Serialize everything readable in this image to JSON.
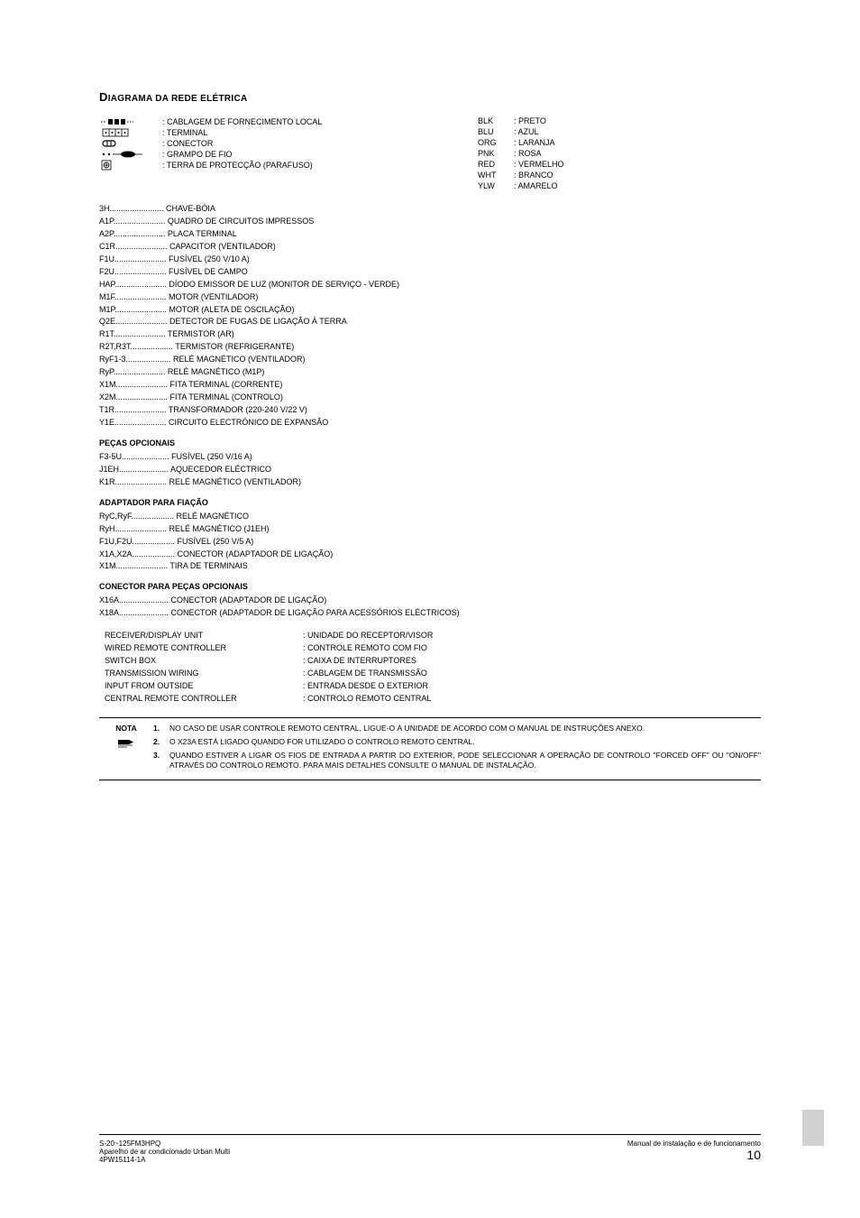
{
  "title_main": "D",
  "title_rest": "IAGRAMA DA REDE ELÉTRICA",
  "symbols": [
    {
      "label": ": CABLAGEM DE FORNECIMENTO LOCAL"
    },
    {
      "label": ": TERMINAL"
    },
    {
      "label": ": CONECTOR"
    },
    {
      "label": ": GRAMPO DE FIO"
    },
    {
      "label": ": TERRA DE PROTECÇÃO (PARAFUSO)"
    }
  ],
  "colors": [
    {
      "code": "BLK",
      "name": ": PRETO"
    },
    {
      "code": "BLU",
      "name": ": AZUL"
    },
    {
      "code": "ORG",
      "name": ": LARANJA"
    },
    {
      "code": "PNK",
      "name": ": ROSA"
    },
    {
      "code": "RED",
      "name": ": VERMELHO"
    },
    {
      "code": "WHT",
      "name": ": BRANCO"
    },
    {
      "code": "YLW",
      "name": ": AMARELO"
    }
  ],
  "main_defs": [
    {
      "code": "3H",
      "desc": "CHAVE-BÓIA"
    },
    {
      "code": "A1P",
      "desc": "QUADRO DE CIRCUITOS IMPRESSOS"
    },
    {
      "code": "A2P",
      "desc": "PLACA TERMINAL"
    },
    {
      "code": "C1R",
      "desc": "CAPACITOR (VENTILADOR)"
    },
    {
      "code": "F1U",
      "desc": "FUSÍVEL (250 V/10 A)"
    },
    {
      "code": "F2U",
      "desc": "FUSÍVEL DE CAMPO"
    },
    {
      "code": "HAP",
      "desc": "DÍODO EMISSOR DE LUZ (MONITOR DE SERVIÇO - VERDE)"
    },
    {
      "code": "M1F",
      "desc": "MOTOR (VENTILADOR)"
    },
    {
      "code": "M1P",
      "desc": "MOTOR (ALETA DE OSCILAÇÃO)"
    },
    {
      "code": "Q2E",
      "desc": "DETECTOR DE FUGAS DE LIGAÇÃO À TERRA"
    },
    {
      "code": "R1T",
      "desc": "TERMISTOR (AR)"
    },
    {
      "code": "R2T,R3T",
      "desc": "TERMISTOR (REFRIGERANTE)"
    },
    {
      "code": "RyF1-3",
      "desc": "RELÉ MAGNÉTICO (VENTILADOR)"
    },
    {
      "code": "RyP",
      "desc": "RELÉ MAGNÉTICO (M1P)"
    },
    {
      "code": "X1M",
      "desc": "FITA TERMINAL (CORRENTE)"
    },
    {
      "code": "X2M",
      "desc": "FITA TERMINAL (CONTROLO)"
    },
    {
      "code": "T1R",
      "desc": "TRANSFORMADOR (220-240 V/22 V)"
    },
    {
      "code": "Y1E",
      "desc": "CIRCUITO ELECTRÓNICO DE EXPANSÃO"
    }
  ],
  "opt_title": "PEÇAS OPCIONAIS",
  "opt_defs": [
    {
      "code": "F3-5U",
      "desc": "FUSÍVEL (250 V/16 A)"
    },
    {
      "code": "J1EH",
      "desc": "AQUECEDOR ELÉCTRICO"
    },
    {
      "code": "K1R",
      "desc": "RELÉ MAGNÉTICO (VENTILADOR)"
    }
  ],
  "adapt_title": "ADAPTADOR PARA FIAÇÃO",
  "adapt_defs": [
    {
      "code": "RyC,RyF",
      "desc": "RELÉ MAGNÉTICO"
    },
    {
      "code": "RyH",
      "desc": "RELÉ MAGNÉTICO (J1EH)"
    },
    {
      "code": "F1U,F2U",
      "desc": "FUSÍVEL (250 V/5 A)"
    },
    {
      "code": "X1A,X2A",
      "desc": "CONECTOR (ADAPTADOR DE LIGAÇÃO)"
    },
    {
      "code": "X1M",
      "desc": "TIRA DE TERMINAIS"
    }
  ],
  "conn_title": "CONECTOR PARA PEÇAS OPCIONAIS",
  "conn_defs": [
    {
      "code": "X16A",
      "desc": "CONECTOR (ADAPTADOR DE LIGAÇÃO)"
    },
    {
      "code": "X18A",
      "desc": "CONECTOR (ADAPTADOR DE LIGAÇÃO PARA ACESSÓRIOS ELÉCTRICOS)"
    }
  ],
  "translations": [
    {
      "en": "RECEIVER/DISPLAY UNIT",
      "pt": ": UNIDADE DO RECEPTOR/VISOR"
    },
    {
      "en": "WIRED REMOTE CONTROLLER",
      "pt": ": CONTROLE REMOTO COM FIO"
    },
    {
      "en": "SWITCH BOX",
      "pt": ": CAIXA DE INTERRUPTORES"
    },
    {
      "en": "TRANSMISSION WIRING",
      "pt": ": CABLAGEM DE TRANSMISSÃO"
    },
    {
      "en": "INPUT FROM OUTSIDE",
      "pt": ": ENTRADA DESDE O EXTERIOR"
    },
    {
      "en": "CENTRAL REMOTE CONTROLLER",
      "pt": ": CONTROLO REMOTO CENTRAL"
    }
  ],
  "nota_label": "NOTA",
  "nota_items": [
    {
      "num": "1.",
      "text": "NO CASO DE USAR CONTROLE REMOTO CENTRAL, LIGUE-O À UNIDADE DE ACORDO COM O MANUAL DE INSTRUÇÕES ANEXO."
    },
    {
      "num": "2.",
      "text": "O X23A ESTÁ LIGADO QUANDO FOR UTILIZADO O CONTROLO REMOTO CENTRAL."
    },
    {
      "num": "3.",
      "text": "QUANDO ESTIVER A LIGAR OS FIOS DE ENTRADA A PARTIR DO EXTERIOR, PODE SELECCIONAR A OPERAÇÃO DE CONTROLO \"FORCED OFF\" OU \"ON/OFF\" ATRAVÉS DO CONTROLO REMOTO. PARA MAIS DETALHES CONSULTE O MANUAL DE INSTALAÇÃO."
    }
  ],
  "footer_left_1": "S-20~125FM3HPQ",
  "footer_left_2": "Aparelho de ar condicionado Urban Multi",
  "footer_left_3": "4PW15114-1A",
  "footer_right_1": "Manual de instalação e de funcionamento",
  "footer_page": "10"
}
